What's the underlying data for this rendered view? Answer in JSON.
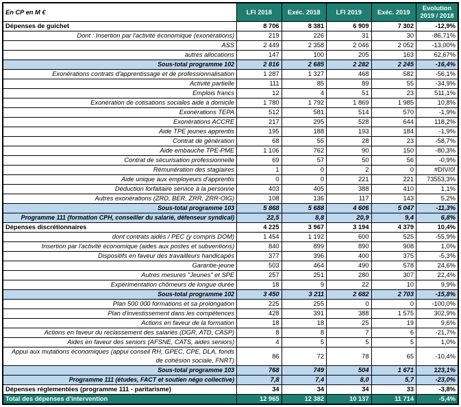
{
  "table": {
    "corner_label": "En CP en M €",
    "columns": [
      "LFI 2018",
      "Exéc. 2018",
      "LFI 2019",
      "Exéc. 2019"
    ],
    "evolution_header": [
      "Evolution",
      "2019 / 2018"
    ],
    "colors": {
      "header_bg": "#1F7D71",
      "subtotal_bg": "#BDD7EE",
      "border": "#000000"
    },
    "rows": [
      {
        "type": "section",
        "label": "Dépenses de guichet",
        "values": [
          "8 706",
          "8 381",
          "6 909",
          "7 302"
        ],
        "evolution": "-12,9%"
      },
      {
        "type": "detail",
        "label": "Dont : Insertion par l'activité économique (exonérations)",
        "values": [
          "219",
          "226",
          "31",
          "30"
        ],
        "evolution": "-86,71%"
      },
      {
        "type": "detail",
        "label": "ASS",
        "values": [
          "2 449",
          "2 358",
          "2 046",
          "2 052"
        ],
        "evolution": "-13,00%"
      },
      {
        "type": "detail",
        "label": "autres allocations",
        "values": [
          "147",
          "100",
          "205",
          "163"
        ],
        "evolution": "62,67%"
      },
      {
        "type": "subtotal",
        "label": "Sous-total programme 102",
        "values": [
          "2 816",
          "2 685",
          "2 282",
          "2 245"
        ],
        "evolution": "-16,4%"
      },
      {
        "type": "detail",
        "label": "Exonérations contrats d'apprentissage et de professionnalisation",
        "values": [
          "1 287",
          "1 327",
          "468",
          "582"
        ],
        "evolution": "-56,1%"
      },
      {
        "type": "detail",
        "label": "Activité partielle",
        "values": [
          "111",
          "85",
          "89",
          "55"
        ],
        "evolution": "-34,9%"
      },
      {
        "type": "detail",
        "label": "Emplois francs",
        "values": [
          "12",
          "4",
          "51",
          "23"
        ],
        "evolution": "511,1%"
      },
      {
        "type": "detail",
        "label": "Exonération de cotisations sociales aide à domicile",
        "values": [
          "1 780",
          "1 792",
          "1 869",
          "1 985"
        ],
        "evolution": "10,8%"
      },
      {
        "type": "detail",
        "label": "Exonérations TEPA",
        "values": [
          "512",
          "581",
          "514",
          "570"
        ],
        "evolution": "-1,9%"
      },
      {
        "type": "detail",
        "label": "Exonérations ACCRE",
        "values": [
          "217",
          "295",
          "528",
          "644"
        ],
        "evolution": "118,2%"
      },
      {
        "type": "detail",
        "label": "Aide TPE jeunes apprentis",
        "values": [
          "195",
          "188",
          "193",
          "184"
        ],
        "evolution": "-1,9%"
      },
      {
        "type": "detail",
        "label": "Contrat de génération",
        "values": [
          "68",
          "55",
          "28",
          "23"
        ],
        "evolution": "-58,7%"
      },
      {
        "type": "detail",
        "label": "Aide embauche TPE-PME",
        "values": [
          "1 106",
          "762",
          "90",
          "150"
        ],
        "evolution": "-80,3%"
      },
      {
        "type": "detail",
        "label": "Contrat de sécurisation professionnelle",
        "values": [
          "69",
          "57",
          "50",
          "56"
        ],
        "evolution": "-0,9%"
      },
      {
        "type": "detail",
        "label": "Rémunération des stagiaires",
        "values": [
          "1",
          "0",
          "2",
          "0"
        ],
        "evolution": "#DIV/0!"
      },
      {
        "type": "detail",
        "label": "Aide unique aux employeurs d'apprentis",
        "values": [
          "0",
          "0",
          "221",
          "221"
        ],
        "evolution": "73553,3%"
      },
      {
        "type": "detail",
        "label": "Déduction forfaitaire service à la personne",
        "values": [
          "403",
          "405",
          "388",
          "410"
        ],
        "evolution": "1,1%"
      },
      {
        "type": "detail",
        "label": "Autres exonérations (ZRD, BER, ZRR, ZRR-OIG)",
        "values": [
          "108",
          "136",
          "117",
          "143"
        ],
        "evolution": "5,2%"
      },
      {
        "type": "subtotal",
        "label": "Sous-total programme 103",
        "values": [
          "5 868",
          "5 688",
          "4 606",
          "5 047"
        ],
        "evolution": "-11,3%"
      },
      {
        "type": "subtotal",
        "label": "Programme 111 (formation CPH, conseiller du salarié, défenseur syndical)",
        "values": [
          "22,5",
          "8,8",
          "20,9",
          "9,4"
        ],
        "evolution": "6,8%"
      },
      {
        "type": "section",
        "label": "Dépenses discrétionnaires",
        "values": [
          "4 225",
          "3 967",
          "3 194",
          "4 379"
        ],
        "evolution": "10,4%"
      },
      {
        "type": "detail",
        "label": "dont contrats aidés / PEC (y compris DOM)",
        "values": [
          "1 454",
          "1 192",
          "600",
          "525"
        ],
        "evolution": "-55,9%"
      },
      {
        "type": "detail",
        "label": "Insertion par l'activité économique (aides aux postes et subventions)",
        "values": [
          "840",
          "899",
          "890",
          "908"
        ],
        "evolution": "1,0%"
      },
      {
        "type": "detail",
        "label": "Dispositifs en faveur des travailleurs handicapés",
        "values": [
          "377",
          "396",
          "400",
          "375"
        ],
        "evolution": "-5,3%"
      },
      {
        "type": "detail",
        "label": "Garantie-jeune",
        "values": [
          "503",
          "464",
          "490",
          "578"
        ],
        "evolution": "24,6%"
      },
      {
        "type": "detail",
        "label": "Autres mesures \"Jeunes\" et SPE",
        "values": [
          "257",
          "251",
          "280",
          "307"
        ],
        "evolution": "22,4%"
      },
      {
        "type": "detail",
        "label": "Expérimentation chômeurs de longue durée",
        "values": [
          "18",
          "9",
          "22",
          "10"
        ],
        "evolution": "9,9%"
      },
      {
        "type": "subtotal",
        "label": "Sous-total programme 102",
        "values": [
          "3 450",
          "3 211",
          "2 682",
          "2 703"
        ],
        "evolution": "-15,8%"
      },
      {
        "type": "detail",
        "label": "Plan 500 000 formations et sa prolongation",
        "values": [
          "225",
          "255",
          "0",
          "0"
        ],
        "evolution": "-100,0%"
      },
      {
        "type": "detail",
        "label": "Plan d'investissement dans les compétences",
        "values": [
          "428",
          "391",
          "388",
          "1 575"
        ],
        "evolution": "302,9%"
      },
      {
        "type": "detail",
        "label": "Actions en faveur de la formation",
        "values": [
          "18",
          "18",
          "25",
          "19"
        ],
        "evolution": "9,6%"
      },
      {
        "type": "detail",
        "label": "Actions en faveur du reclassement des salariés (DGR, ATD, CASP)",
        "values": [
          "8",
          "8",
          "7",
          "6"
        ],
        "evolution": "-21,7%"
      },
      {
        "type": "detail",
        "label": "Aides en faveur des seniors (AFSNE, CATS, aides seniors)",
        "values": [
          "4",
          "5",
          "5",
          "5"
        ],
        "evolution": "1,0%"
      },
      {
        "type": "detail",
        "label": "Appui aux mutations économiques (appui conseil RH, GPEC, CPE, DLA, fonds de cohésion sociale, FNRT)",
        "values": [
          "86",
          "72",
          "78",
          "65"
        ],
        "evolution": "-10,4%"
      },
      {
        "type": "subtotal",
        "label": "Sous-total programme 103",
        "values": [
          "768",
          "749",
          "504",
          "1 671"
        ],
        "evolution": "123,1%"
      },
      {
        "type": "subtotal",
        "label": "Programme 111 (études, FACT et soutien négo collective)",
        "values": [
          "7,8",
          "7,4",
          "8,0",
          "5,7"
        ],
        "evolution": "-23,0%"
      },
      {
        "type": "section",
        "label": "Dépenses réglementées (programme 111 - paritarisme)",
        "values": [
          "34",
          "34",
          "34",
          "33"
        ],
        "evolution": "-3,8%"
      },
      {
        "type": "total",
        "label": "Total des dépenses d'intervention",
        "values": [
          "12 965",
          "12 382",
          "10 137",
          "11 714"
        ],
        "evolution": "-5,4%"
      }
    ]
  }
}
